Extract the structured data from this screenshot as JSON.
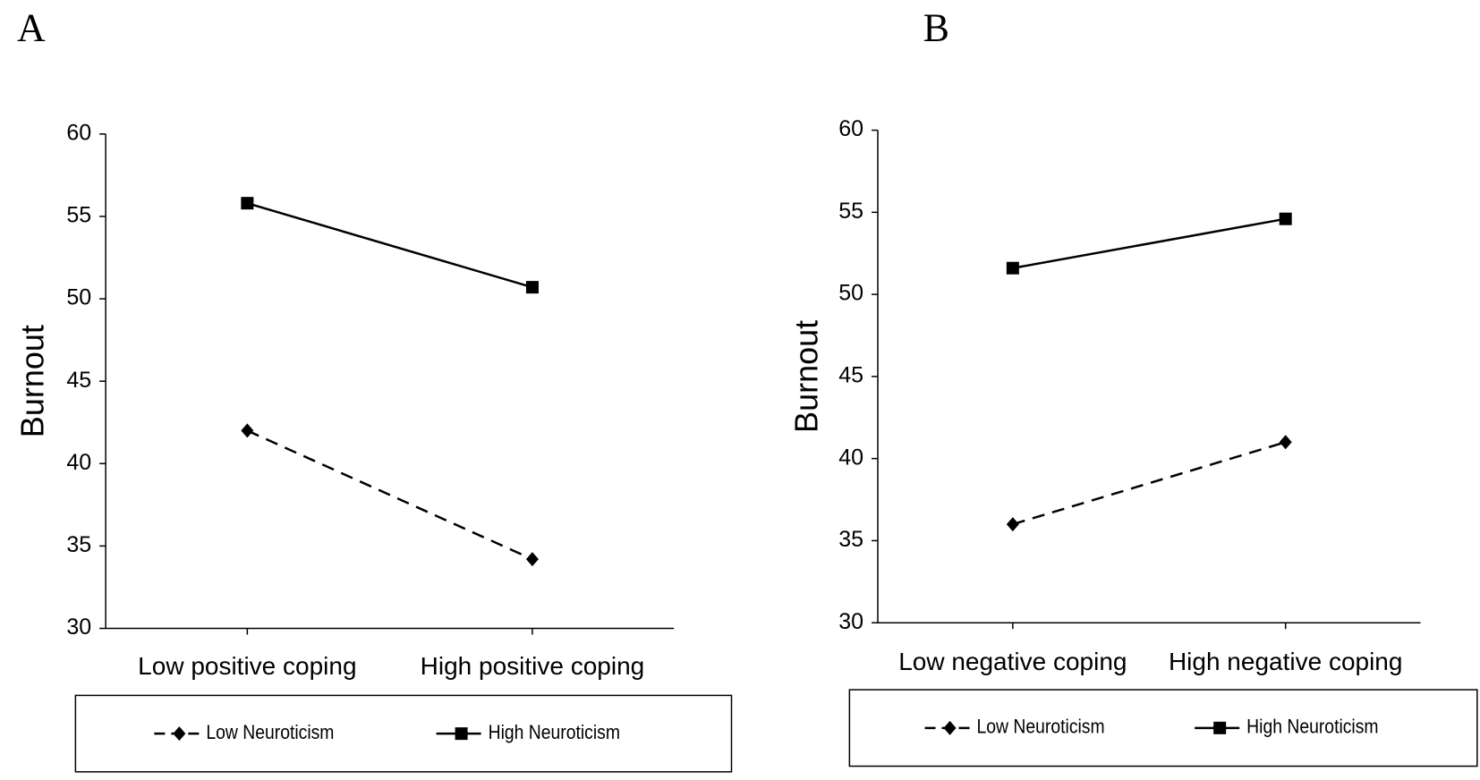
{
  "chart_data": [
    {
      "type": "line",
      "panel_label": "A",
      "y_label": "Burnout",
      "categories": [
        "Low positive coping",
        "High positive coping"
      ],
      "series": [
        {
          "name": "Low Neuroticism",
          "color": "#000000",
          "line_style": "dashed",
          "marker": "diamond",
          "values": [
            42,
            34.2
          ]
        },
        {
          "name": "High Neuroticism",
          "color": "#000000",
          "line_style": "solid",
          "marker": "square",
          "values": [
            55.8,
            50.7
          ]
        }
      ],
      "ylim": [
        30,
        60
      ],
      "yticks": [
        30,
        35,
        40,
        45,
        50,
        55,
        60
      ],
      "legend": "bottom"
    },
    {
      "type": "line",
      "panel_label": "B",
      "y_label": "Burnout",
      "categories": [
        "Low negative coping",
        "High negative coping"
      ],
      "series": [
        {
          "name": "Low Neuroticism",
          "color": "#000000",
          "line_style": "dashed",
          "marker": "diamond",
          "values": [
            36,
            41
          ]
        },
        {
          "name": "High Neuroticism",
          "color": "#000000",
          "line_style": "solid",
          "marker": "square",
          "values": [
            51.6,
            54.6
          ]
        }
      ],
      "ylim": [
        30,
        60
      ],
      "yticks": [
        30,
        35,
        40,
        45,
        50,
        55,
        60
      ],
      "legend": "bottom"
    }
  ]
}
